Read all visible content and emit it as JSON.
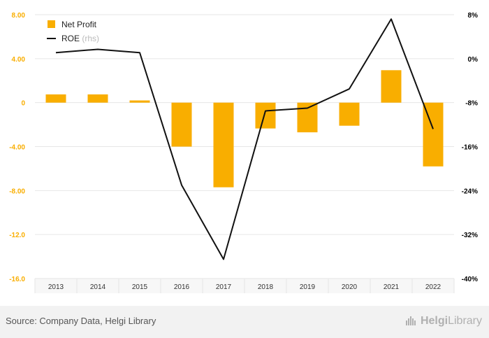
{
  "chart_data": {
    "type": "bar+line",
    "categories": [
      "2013",
      "2014",
      "2015",
      "2016",
      "2017",
      "2018",
      "2019",
      "2020",
      "2021",
      "2022"
    ],
    "series": [
      {
        "name": "Net Profit",
        "type": "bar",
        "axis": "left",
        "values": [
          0.75,
          0.75,
          0.2,
          -4.0,
          -7.7,
          -2.35,
          -2.7,
          -2.1,
          2.95,
          -5.8
        ]
      },
      {
        "name": "ROE",
        "axis_note": "(rhs)",
        "type": "line",
        "axis": "right",
        "values": [
          1.1,
          1.7,
          1.1,
          -23.0,
          -36.5,
          -9.5,
          -9.0,
          -5.5,
          7.2,
          -12.8
        ]
      }
    ],
    "y_left": {
      "min": -16,
      "max": 8,
      "ticks": [
        "8.00",
        "4.00",
        "0",
        "-4.00",
        "-8.00",
        "-12.0",
        "-16.0"
      ],
      "tick_values": [
        8,
        4,
        0,
        -4,
        -8,
        -12,
        -16
      ]
    },
    "y_right": {
      "min": -40,
      "max": 8,
      "ticks": [
        "8%",
        "0%",
        "-8%",
        "-16%",
        "-24%",
        "-32%",
        "-40%"
      ],
      "tick_values": [
        8,
        0,
        -8,
        -16,
        -24,
        -32,
        -40
      ]
    },
    "legend_position": "top-left",
    "grid": true,
    "colors": {
      "bar": "#f9ae00",
      "line": "#111111",
      "left_axis_text": "#f9ae00",
      "right_axis_text": "#000000",
      "grid": "#e6e6e6"
    }
  },
  "footer": {
    "source": "Source: Company Data, Helgi Library",
    "brand_part1": "Helgi",
    "brand_part2": "Library",
    "brand_icon": "library-icon"
  }
}
